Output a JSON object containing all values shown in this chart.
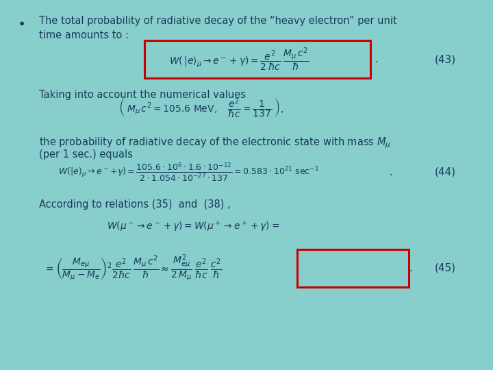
{
  "bg_color": "#87CECC",
  "text_color": "#1a3a5c",
  "red_box_color": "#cc0000",
  "fig_width": 7.2,
  "fig_height": 5.4,
  "dpi": 100,
  "bullet_text_line1": "The total probability of radiative decay of the “heavy electron” per unit",
  "bullet_text_line2": "time amounts to :",
  "eq43_num": "(43)",
  "text_taking": "Taking into account the numerical values",
  "text_prob": "the probability of radiative decay of the electronic state with mass $M_{\\mu}$",
  "text_prob2": "(per 1 sec.) equals",
  "eq44_num": "(44)",
  "text_according": "According to relations (35)  and  (38) ,",
  "eq45_num": "(45)"
}
